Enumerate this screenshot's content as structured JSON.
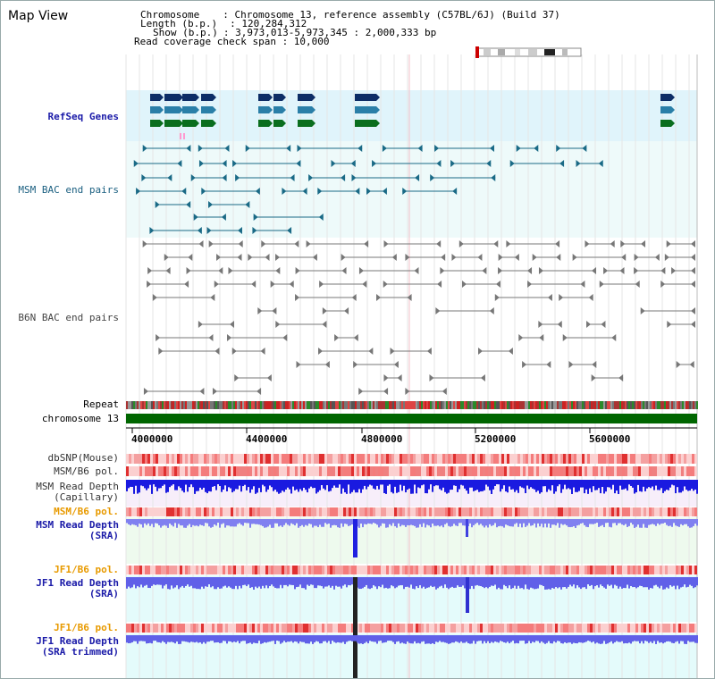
{
  "view": {
    "title": "Map View",
    "info": {
      "chromosome_key": "Chromosome",
      "chromosome_val": ": Chromosome 13, reference assembly (C57BL/6J) (Build 37)",
      "length_key": "Length (b.p.)",
      "length_val": ": 120,284,312",
      "show_key": "Show (b.p.)",
      "show_val": ": 3,973,013-5,973,345 : 2,000,333 bp",
      "coverage_line": "Read coverage check span : 10,000"
    }
  },
  "tracks": {
    "refseq": "RefSeq Genes",
    "msm_bac": "MSM BAC end pairs",
    "b6n_bac": "B6N BAC end pairs",
    "repeat": "Repeat",
    "chromosome": "chromosome 13",
    "dbsnp": "dbSNP(Mouse)",
    "msm_b6_pol_1": "MSM/B6 pol.",
    "msm_read_cap_1": "MSM Read Depth",
    "msm_read_cap_2": "(Capillary)",
    "msm_b6_pol_2": "MSM/B6 pol.",
    "msm_read_sra_1": "MSM Read Depth",
    "msm_read_sra_2": "(SRA)",
    "jf1_b6_pol_1": "JF1/B6 pol.",
    "jf1_read_sra_1": "JF1 Read Depth",
    "jf1_read_sra_2": "(SRA)",
    "jf1_b6_pol_2": "JF1/B6 pol.",
    "jf1_read_trim_1": "JF1 Read Depth",
    "jf1_read_trim_2": "(SRA trimmed)"
  },
  "axis": {
    "ticks": [
      "4000000",
      "4400000",
      "4800000",
      "5200000",
      "5600000"
    ]
  },
  "colors": {
    "refseq_bg": "#e0f4fb",
    "bac_bg": "#eefafa",
    "gene_navy": "#0d2d66",
    "gene_teal": "#2a7fa8",
    "gene_green": "#0a6e1e",
    "bac_teal": "#1a6a86",
    "bac_grey": "#777777",
    "chrom_green": "#006600",
    "cap_blue": "#1a1ae0",
    "sra_blue": "#8080f0",
    "jf1_blue": "#6060e8",
    "dark_bar": "#222222"
  }
}
